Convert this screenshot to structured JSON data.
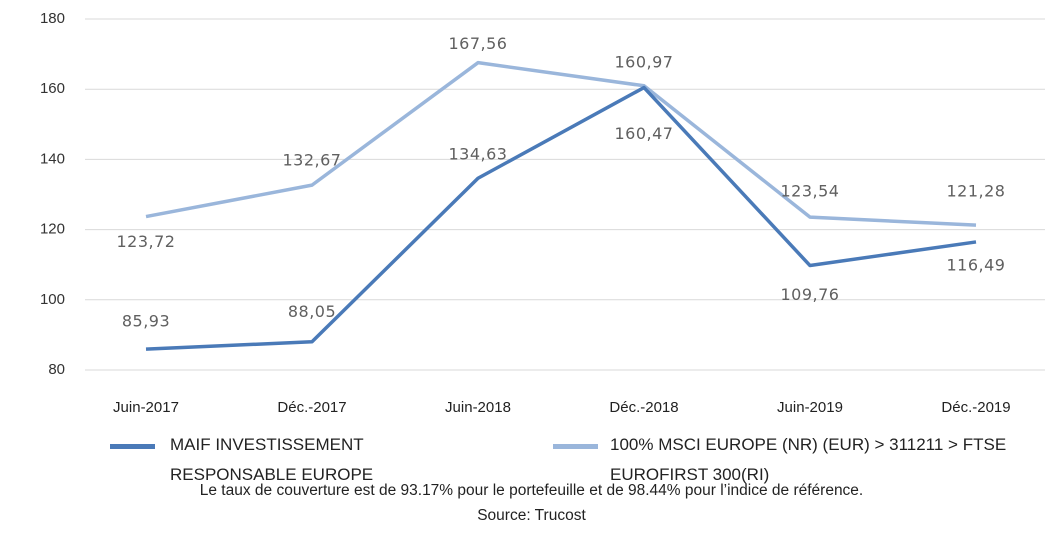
{
  "chart_data": {
    "type": "line",
    "categories": [
      "Juin-2017",
      "Déc.-2017",
      "Juin-2018",
      "Déc.-2018",
      "Juin-2019",
      "Déc.-2019"
    ],
    "series": [
      {
        "name": "MAIF INVESTISSEMENT RESPONSABLE EUROPE",
        "color": "#4a7ab8",
        "values": [
          85.93,
          88.05,
          134.63,
          160.47,
          109.76,
          116.49
        ],
        "value_labels": [
          "85,93",
          "88,05",
          "134,63",
          "160,47",
          "109,76",
          "116,49"
        ]
      },
      {
        "name": "100% MSCI EUROPE (NR) (EUR) > 311211 > FTSE EUROFIRST 300(RI)",
        "color": "#9ab6db",
        "values": [
          123.72,
          132.67,
          167.56,
          160.97,
          123.54,
          121.28
        ],
        "value_labels": [
          "123,72",
          "132,67",
          "167,56",
          "160,97",
          "123,54",
          "121,28"
        ]
      }
    ],
    "ylim": [
      80,
      180
    ],
    "yticks": [
      80,
      100,
      120,
      140,
      160,
      180
    ],
    "grid": true,
    "notes": [
      "Le taux de couverture est de 93.17% pour le portefeuille et de 98.44% pour l’indice de référence.",
      "Source: Trucost"
    ]
  }
}
